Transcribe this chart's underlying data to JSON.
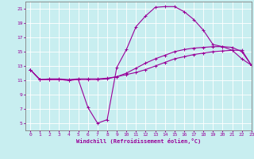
{
  "xlabel": "Windchill (Refroidissement éolien,°C)",
  "bg_color": "#c8eef0",
  "line_color": "#990099",
  "grid_color": "#ffffff",
  "axes_color": "#808080",
  "xlim": [
    -0.5,
    23
  ],
  "ylim": [
    4,
    22
  ],
  "xticks": [
    0,
    1,
    2,
    3,
    4,
    5,
    6,
    7,
    8,
    9,
    10,
    11,
    12,
    13,
    14,
    15,
    16,
    17,
    18,
    19,
    20,
    21,
    22,
    23
  ],
  "yticks": [
    5,
    7,
    9,
    11,
    13,
    15,
    17,
    19,
    21
  ],
  "line1_x": [
    0,
    1,
    2,
    3,
    4,
    5,
    6,
    7,
    8,
    9,
    10,
    11,
    12,
    13,
    14,
    15,
    16,
    17,
    18,
    19,
    20,
    21,
    22,
    23
  ],
  "line1_y": [
    12.5,
    11.1,
    11.1,
    11.1,
    11.0,
    11.1,
    7.2,
    5.0,
    5.5,
    12.8,
    15.3,
    18.5,
    20.0,
    21.2,
    21.3,
    21.3,
    20.6,
    19.5,
    18.0,
    16.0,
    15.7,
    15.2,
    14.0,
    13.1
  ],
  "line2_x": [
    0,
    1,
    2,
    3,
    4,
    5,
    6,
    7,
    8,
    9,
    10,
    11,
    12,
    13,
    14,
    15,
    16,
    17,
    18,
    19,
    20,
    21,
    22,
    23
  ],
  "line2_y": [
    12.5,
    11.1,
    11.2,
    11.2,
    11.1,
    11.2,
    11.2,
    11.2,
    11.3,
    11.5,
    11.8,
    12.1,
    12.5,
    13.0,
    13.5,
    14.0,
    14.3,
    14.6,
    14.8,
    15.0,
    15.1,
    15.2,
    15.2,
    13.1
  ],
  "line3_x": [
    0,
    1,
    2,
    3,
    4,
    5,
    6,
    7,
    8,
    9,
    10,
    11,
    12,
    13,
    14,
    15,
    16,
    17,
    18,
    19,
    20,
    21,
    22,
    23
  ],
  "line3_y": [
    12.5,
    11.1,
    11.1,
    11.1,
    11.0,
    11.1,
    11.1,
    11.1,
    11.2,
    11.5,
    12.0,
    12.7,
    13.4,
    14.0,
    14.5,
    15.0,
    15.3,
    15.5,
    15.6,
    15.7,
    15.7,
    15.6,
    15.0,
    13.1
  ],
  "tick_fontsize": 4.5,
  "xlabel_fontsize": 5.0,
  "linewidth": 0.8,
  "markersize": 3.0,
  "markeredgewidth": 0.7
}
